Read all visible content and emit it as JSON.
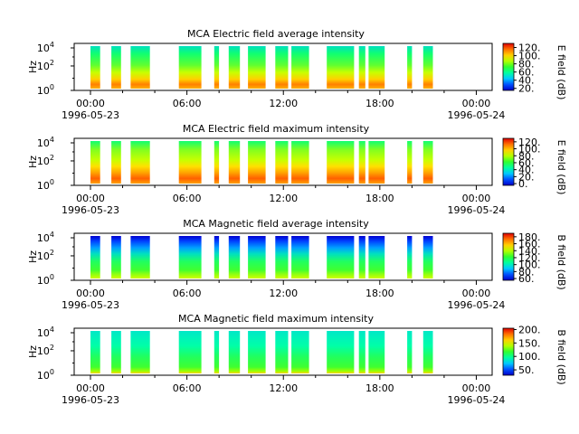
{
  "chart_data": [
    {
      "type": "heatmap",
      "title": "MCA  Electric field average intensity",
      "ylabel": "Hz",
      "yscale": "log",
      "y_ticks": [
        "10",
        "10",
        "10"
      ],
      "y_tick_exponents": [
        "0",
        "2",
        "4"
      ],
      "x_ticks": [
        "00:00",
        "06:00",
        "12:00",
        "18:00",
        "00:00"
      ],
      "x_date_left": "1996-05-23",
      "x_date_right": "1996-05-24",
      "colorbar": {
        "label": "E field (dB)",
        "ticks": [
          "20.",
          "40.",
          "60.",
          "80.",
          "100.",
          "120."
        ],
        "range": [
          15,
          130
        ]
      },
      "data_intervals_hours": [
        [
          0.0,
          0.6
        ],
        [
          1.3,
          1.9
        ],
        [
          2.5,
          3.7
        ],
        [
          5.5,
          6.9
        ],
        [
          7.7,
          8.0
        ],
        [
          8.6,
          9.3
        ],
        [
          9.8,
          10.9
        ],
        [
          11.5,
          12.3
        ],
        [
          12.5,
          13.6
        ],
        [
          14.7,
          16.4
        ],
        [
          16.7,
          17.1
        ],
        [
          17.3,
          18.3
        ],
        [
          19.7,
          20.0
        ],
        [
          20.7,
          21.3
        ]
      ]
    },
    {
      "type": "heatmap",
      "title": "MCA  Electric field maximum intensity",
      "ylabel": "Hz",
      "yscale": "log",
      "y_ticks": [
        "10",
        "10",
        "10"
      ],
      "y_tick_exponents": [
        "0",
        "2",
        "4"
      ],
      "x_ticks": [
        "00:00",
        "06:00",
        "12:00",
        "18:00",
        "00:00"
      ],
      "x_date_left": "1996-05-23",
      "x_date_right": "1996-05-24",
      "colorbar": {
        "label": "E field (dB)",
        "ticks": [
          "0.",
          "20.",
          "40.",
          "60.",
          "80.",
          "100.",
          "120."
        ],
        "range": [
          -5,
          130
        ]
      },
      "data_intervals_hours": [
        [
          0.0,
          0.6
        ],
        [
          1.3,
          1.9
        ],
        [
          2.5,
          3.7
        ],
        [
          5.5,
          6.9
        ],
        [
          7.7,
          8.0
        ],
        [
          8.6,
          9.3
        ],
        [
          9.8,
          10.9
        ],
        [
          11.5,
          12.3
        ],
        [
          12.5,
          13.6
        ],
        [
          14.7,
          16.4
        ],
        [
          16.7,
          17.1
        ],
        [
          17.3,
          18.3
        ],
        [
          19.7,
          20.0
        ],
        [
          20.7,
          21.3
        ]
      ]
    },
    {
      "type": "heatmap",
      "title": "MCA  Magnetic field average intensity",
      "ylabel": "Hz",
      "yscale": "log",
      "y_ticks": [
        "10",
        "10",
        "10"
      ],
      "y_tick_exponents": [
        "0",
        "2",
        "4"
      ],
      "x_ticks": [
        "00:00",
        "06:00",
        "12:00",
        "18:00",
        "00:00"
      ],
      "x_date_left": "1996-05-23",
      "x_date_right": "1996-05-24",
      "colorbar": {
        "label": "B field (dB)",
        "ticks": [
          "60.",
          "80.",
          "100.",
          "120.",
          "140.",
          "160.",
          "180."
        ],
        "range": [
          55,
          190
        ]
      },
      "data_intervals_hours": [
        [
          0.0,
          0.6
        ],
        [
          1.3,
          1.9
        ],
        [
          2.5,
          3.7
        ],
        [
          5.5,
          6.9
        ],
        [
          7.7,
          8.0
        ],
        [
          8.6,
          9.3
        ],
        [
          9.8,
          10.9
        ],
        [
          11.5,
          12.3
        ],
        [
          12.5,
          13.6
        ],
        [
          14.7,
          16.4
        ],
        [
          16.7,
          17.1
        ],
        [
          17.3,
          18.3
        ],
        [
          19.7,
          20.0
        ],
        [
          20.7,
          21.3
        ]
      ]
    },
    {
      "type": "heatmap",
      "title": "MCA  Magnetic field maximum intensity",
      "ylabel": "Hz",
      "yscale": "log",
      "y_ticks": [
        "10",
        "10",
        "10"
      ],
      "y_tick_exponents": [
        "0",
        "2",
        "4"
      ],
      "x_ticks": [
        "00:00",
        "06:00",
        "12:00",
        "18:00",
        "00:00"
      ],
      "x_date_left": "1996-05-23",
      "x_date_right": "1996-05-24",
      "colorbar": {
        "label": "B field (dB)",
        "ticks": [
          "50.",
          "100.",
          "150.",
          "200."
        ],
        "range": [
          30,
          205
        ]
      },
      "data_intervals_hours": [
        [
          0.0,
          0.6
        ],
        [
          1.3,
          1.9
        ],
        [
          2.5,
          3.7
        ],
        [
          5.5,
          6.9
        ],
        [
          7.7,
          8.0
        ],
        [
          8.6,
          9.3
        ],
        [
          9.8,
          10.9
        ],
        [
          11.5,
          12.3
        ],
        [
          12.5,
          13.6
        ],
        [
          14.7,
          16.4
        ],
        [
          16.7,
          17.1
        ],
        [
          17.3,
          18.3
        ],
        [
          19.7,
          20.0
        ],
        [
          20.7,
          21.3
        ]
      ]
    }
  ],
  "colors": {
    "colormap": [
      "#0000c8",
      "#0050ff",
      "#00c8ff",
      "#00ffa0",
      "#30ff30",
      "#b4ff00",
      "#ffd000",
      "#ff7000",
      "#e00000"
    ]
  }
}
